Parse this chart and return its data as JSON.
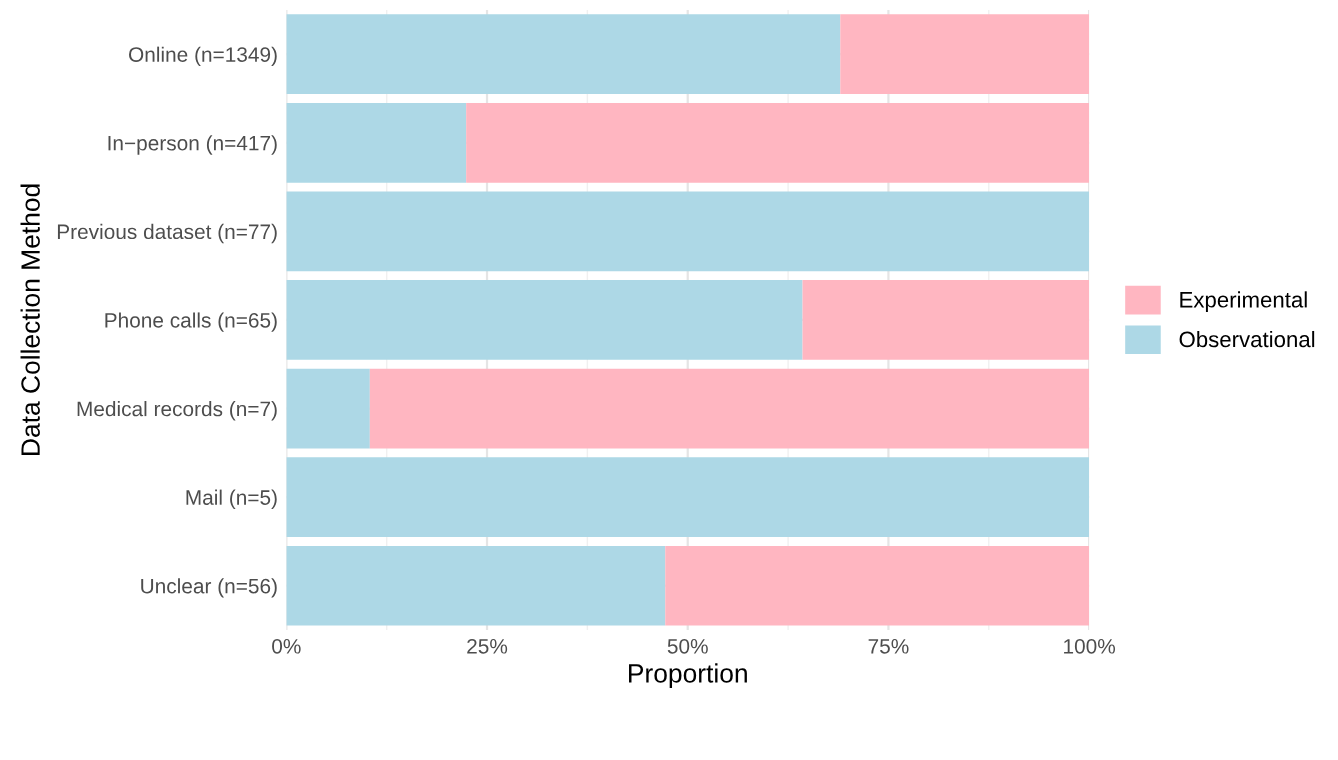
{
  "chart_data": {
    "type": "bar",
    "orientation": "horizontal",
    "stacked": true,
    "xlabel": "Proportion",
    "ylabel": "Data Collection Method",
    "categories": [
      "Online (n=1349)",
      "In−person (n=417)",
      "Previous dataset (n=77)",
      "Phone calls (n=65)",
      "Medical records (n=7)",
      "Mail (n=5)",
      "Unclear (n=56)"
    ],
    "series": [
      {
        "name": "Observational",
        "color": "#add8e6",
        "values": [
          0.69,
          0.224,
          1.0,
          0.643,
          0.104,
          1.0,
          0.472
        ]
      },
      {
        "name": "Experimental",
        "color": "#ffb6c1",
        "values": [
          0.31,
          0.776,
          0.0,
          0.357,
          0.896,
          0.0,
          0.528
        ]
      }
    ],
    "xlim": [
      0,
      1
    ],
    "xticks": [
      {
        "value": 0,
        "label": "0%"
      },
      {
        "value": 0.25,
        "label": "25%"
      },
      {
        "value": 0.5,
        "label": "50%"
      },
      {
        "value": 0.75,
        "label": "75%"
      },
      {
        "value": 1,
        "label": "100%"
      }
    ],
    "grid": true,
    "legend": "right"
  }
}
